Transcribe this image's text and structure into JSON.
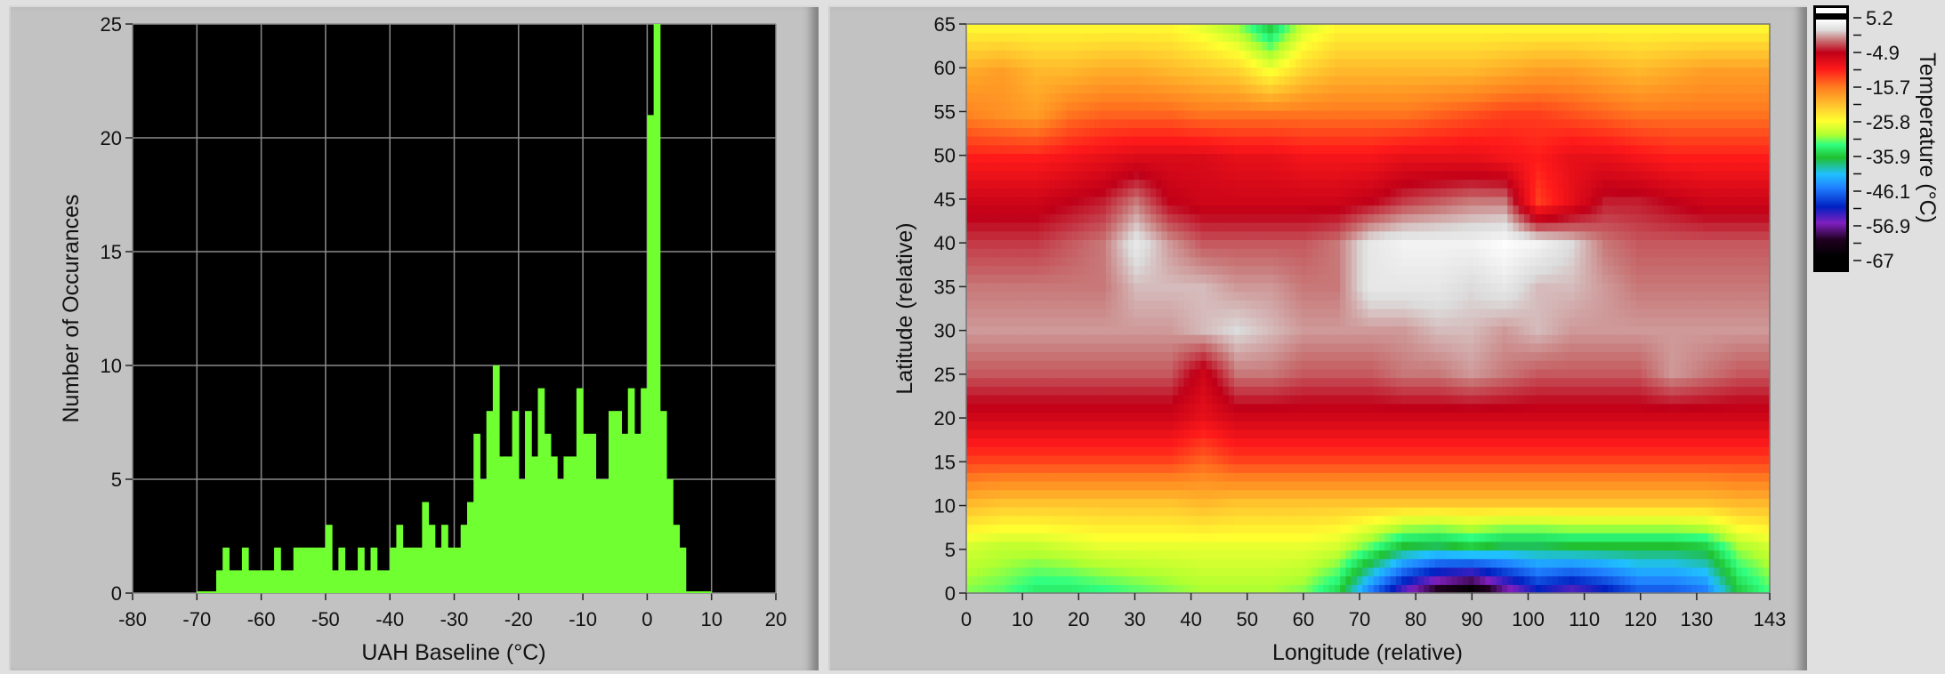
{
  "chart_data": [
    {
      "type": "bar",
      "xlabel": "UAH Baseline (°C)",
      "ylabel": "Number of Occurances",
      "xlim": [
        -80,
        20
      ],
      "ylim": [
        0,
        25
      ],
      "xticks": [
        -80,
        -70,
        -60,
        -50,
        -40,
        -30,
        -20,
        -10,
        0,
        10,
        20
      ],
      "yticks": [
        0,
        5,
        10,
        15,
        20,
        25
      ],
      "grid": true,
      "background": "#000000",
      "bar_color": "#70ff30",
      "bin_width": 1,
      "bins_start": [
        -70,
        -69,
        -68,
        -67,
        -66,
        -65,
        -64,
        -63,
        -62,
        -61,
        -60,
        -59,
        -58,
        -57,
        -56,
        -55,
        -54,
        -53,
        -52,
        -51,
        -50,
        -49,
        -48,
        -47,
        -46,
        -45,
        -44,
        -43,
        -42,
        -41,
        -40,
        -39,
        -38,
        -37,
        -36,
        -35,
        -34,
        -33,
        -32,
        -31,
        -30,
        -29,
        -28,
        -27,
        -26,
        -25,
        -24,
        -23,
        -22,
        -21,
        -20,
        -19,
        -18,
        -17,
        -16,
        -15,
        -14,
        -13,
        -12,
        -11,
        -10,
        -9,
        -8,
        -7,
        -6,
        -5,
        -4,
        -3,
        -2,
        -1,
        0,
        1,
        2,
        3,
        4,
        5,
        6,
        7,
        8,
        9
      ],
      "counts": [
        0,
        0,
        0,
        1,
        2,
        1,
        1,
        2,
        1,
        1,
        1,
        1,
        2,
        1,
        1,
        2,
        2,
        2,
        2,
        2,
        3,
        1,
        2,
        1,
        1,
        2,
        1,
        2,
        1,
        1,
        2,
        3,
        2,
        2,
        2,
        4,
        3,
        2,
        3,
        2,
        2,
        3,
        4,
        7,
        5,
        8,
        10,
        6,
        6,
        8,
        5,
        8,
        6,
        9,
        7,
        6,
        5,
        6,
        6,
        9,
        7,
        7,
        5,
        5,
        8,
        8,
        7,
        9,
        7,
        9,
        21,
        25,
        8,
        5,
        3,
        2,
        0,
        0,
        0,
        0
      ]
    },
    {
      "type": "heatmap",
      "xlabel": "Longitude (relative)",
      "ylabel": "Latitude (relative)",
      "xlim": [
        0,
        143
      ],
      "ylim": [
        0,
        65
      ],
      "xticks": [
        0,
        10,
        20,
        30,
        40,
        50,
        60,
        70,
        80,
        90,
        100,
        110,
        120,
        130,
        143
      ],
      "yticks": [
        0,
        5,
        10,
        15,
        20,
        25,
        30,
        35,
        40,
        45,
        50,
        55,
        60,
        65
      ],
      "colorbar": {
        "title": "Temperature (°C)",
        "ticks": [
          "5.2",
          "-4.9",
          "-15.7",
          "-25.8",
          "-35.9",
          "-46.1",
          "-56.9",
          "-67"
        ],
        "range": [
          -67,
          5.2
        ],
        "colormap": [
          [
            5.2,
            "#ffffff"
          ],
          [
            2,
            "#dcdcdc"
          ],
          [
            -1,
            "#c87878"
          ],
          [
            -4.9,
            "#c00018"
          ],
          [
            -10,
            "#ff1a1a"
          ],
          [
            -15.7,
            "#ff8020"
          ],
          [
            -22,
            "#ffd030"
          ],
          [
            -25.8,
            "#ffff30"
          ],
          [
            -30,
            "#b0ff30"
          ],
          [
            -33,
            "#30ff80"
          ],
          [
            -37,
            "#20c030"
          ],
          [
            -42,
            "#20c0ff"
          ],
          [
            -46.1,
            "#2080ff"
          ],
          [
            -52,
            "#0020c0"
          ],
          [
            -56.9,
            "#8020c0"
          ],
          [
            -62,
            "#200020"
          ],
          [
            -67,
            "#000000"
          ]
        ]
      },
      "grid_lon": [
        0,
        6,
        12,
        18,
        24,
        30,
        36,
        42,
        48,
        54,
        60,
        66,
        72,
        78,
        84,
        90,
        96,
        102,
        108,
        114,
        120,
        126,
        132,
        138,
        144
      ],
      "grid_lat": [
        65,
        60,
        55,
        50,
        45,
        40,
        35,
        30,
        25,
        20,
        15,
        10,
        5,
        0
      ],
      "values": [
        [
          -25,
          -25,
          -25,
          -25,
          -25,
          -25,
          -25,
          -27,
          -30,
          -36,
          -28,
          -25,
          -25,
          -25,
          -25,
          -25,
          -25,
          -25,
          -25,
          -25,
          -25,
          -25,
          -25,
          -25,
          -25
        ],
        [
          -19,
          -18,
          -20,
          -20,
          -19,
          -19,
          -20,
          -21,
          -22,
          -26,
          -22,
          -20,
          -20,
          -20,
          -20,
          -20,
          -19,
          -18,
          -18,
          -19,
          -20,
          -19,
          -18,
          -18,
          -18
        ],
        [
          -16,
          -17,
          -18,
          -15,
          -14,
          -14,
          -14,
          -15,
          -15,
          -15,
          -15,
          -15,
          -15,
          -15,
          -14,
          -13,
          -12,
          -12,
          -13,
          -14,
          -15,
          -15,
          -15,
          -15,
          -15
        ],
        [
          -10,
          -10,
          -10,
          -9,
          -8,
          -7,
          -7,
          -7,
          -8,
          -8,
          -9,
          -9,
          -9,
          -8,
          -8,
          -8,
          -9,
          -10,
          -8,
          -8,
          -9,
          -10,
          -10,
          -10,
          -10
        ],
        [
          -6,
          -6,
          -6,
          -5,
          -4,
          -1,
          -5,
          -6,
          -6,
          -6,
          -6,
          -6,
          -5,
          -3,
          -2,
          -1,
          -1,
          -12,
          -8,
          -4,
          -4,
          -5,
          -6,
          -6,
          -6
        ],
        [
          -3,
          -3,
          -3,
          -2,
          -1,
          3,
          0,
          -2,
          -2,
          -2,
          -2,
          -1,
          3,
          4,
          4,
          4,
          5,
          4,
          2,
          -1,
          -2,
          -2,
          -2,
          -2,
          -2
        ],
        [
          -1,
          -1,
          -1,
          -1,
          -1,
          1,
          1,
          1,
          0,
          0,
          -1,
          -1,
          3,
          3,
          3,
          2,
          3,
          1,
          1,
          0,
          -1,
          -1,
          -1,
          -1,
          -1
        ],
        [
          0,
          0,
          0,
          0,
          0,
          0,
          0,
          1,
          2,
          1,
          0,
          0,
          0,
          0,
          1,
          1,
          0,
          1,
          0,
          0,
          0,
          0,
          0,
          0,
          0
        ],
        [
          -2,
          -2,
          -2,
          -2,
          -2,
          -2,
          -2,
          -6,
          -1,
          -1,
          -2,
          -2,
          -2,
          -1,
          -1,
          0,
          -1,
          -2,
          -2,
          -2,
          -2,
          0,
          -1,
          -2,
          -2
        ],
        [
          -6,
          -6,
          -6,
          -6,
          -6,
          -6,
          -6,
          -8,
          -6,
          -6,
          -6,
          -6,
          -6,
          -6,
          -6,
          -6,
          -6,
          -6,
          -6,
          -6,
          -6,
          -6,
          -6,
          -6,
          -6
        ],
        [
          -12,
          -12,
          -12,
          -12,
          -12,
          -12,
          -12,
          -14,
          -12,
          -12,
          -12,
          -12,
          -12,
          -12,
          -12,
          -12,
          -12,
          -12,
          -12,
          -12,
          -12,
          -12,
          -12,
          -12,
          -12
        ],
        [
          -20,
          -21,
          -21,
          -21,
          -21,
          -21,
          -21,
          -20,
          -21,
          -21,
          -21,
          -21,
          -21,
          -21,
          -21,
          -21,
          -21,
          -21,
          -21,
          -21,
          -21,
          -21,
          -21,
          -20,
          -20
        ],
        [
          -28,
          -29,
          -29,
          -28,
          -27,
          -27,
          -27,
          -27,
          -27,
          -27,
          -27,
          -28,
          -32,
          -37,
          -38,
          -36,
          -38,
          -38,
          -37,
          -37,
          -37,
          -37,
          -36,
          -30,
          -28
        ],
        [
          -31,
          -32,
          -34,
          -34,
          -33,
          -32,
          -31,
          -30,
          -30,
          -30,
          -31,
          -35,
          -46,
          -55,
          -62,
          -66,
          -58,
          -52,
          -55,
          -52,
          -48,
          -48,
          -46,
          -36,
          -32
        ]
      ]
    }
  ]
}
